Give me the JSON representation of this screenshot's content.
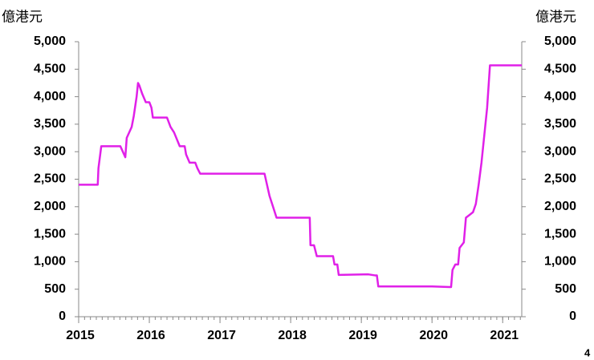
{
  "chart_data": {
    "type": "line",
    "y_label": "億港元",
    "y2_label": "億港元",
    "color": "#e020e8",
    "x": [
      2015.0,
      2015.27,
      2015.28,
      2015.32,
      2015.59,
      2015.66,
      2015.68,
      2015.75,
      2015.78,
      2015.82,
      2015.84,
      2015.86,
      2015.9,
      2015.95,
      2016.0,
      2016.03,
      2016.05,
      2016.25,
      2016.3,
      2016.35,
      2016.43,
      2016.5,
      2016.52,
      2016.57,
      2016.65,
      2016.68,
      2016.72,
      2017.63,
      2017.7,
      2017.75,
      2017.8,
      2018.27,
      2018.28,
      2018.33,
      2018.37,
      2018.6,
      2018.62,
      2018.66,
      2018.68,
      2019.1,
      2019.2,
      2019.22,
      2019.24,
      2020.0,
      2020.25,
      2020.27,
      2020.29,
      2020.33,
      2020.37,
      2020.39,
      2020.45,
      2020.48,
      2020.53,
      2020.58,
      2020.62,
      2020.66,
      2020.7,
      2020.74,
      2020.78,
      2020.82,
      2021.27
    ],
    "values": [
      2400,
      2400,
      2700,
      3100,
      3100,
      2900,
      3250,
      3450,
      3650,
      4000,
      4250,
      4200,
      4050,
      3900,
      3900,
      3800,
      3620,
      3620,
      3450,
      3350,
      3100,
      3100,
      2950,
      2800,
      2800,
      2700,
      2600,
      2600,
      2200,
      2000,
      1800,
      1800,
      1300,
      1300,
      1100,
      1100,
      950,
      950,
      760,
      770,
      750,
      750,
      550,
      550,
      540,
      540,
      850,
      950,
      950,
      1250,
      1350,
      1800,
      1850,
      1900,
      2050,
      2400,
      2800,
      3300,
      3800,
      4570,
      4570
    ],
    "xlim": [
      2015,
      2021.27
    ],
    "xticks": [
      2015,
      2016,
      2017,
      2018,
      2019,
      2020,
      2021
    ],
    "ylim": [
      0,
      5000
    ],
    "yticks": [
      0,
      500,
      {
        "value": 1000,
        "label": "1,000"
      },
      {
        "value": 1500,
        "label": "1,500"
      },
      {
        "value": 2000,
        "label": "2,000"
      },
      {
        "value": 2500,
        "label": "2,500"
      },
      {
        "value": 3000,
        "label": "3,000"
      },
      {
        "value": 3500,
        "label": "3,500"
      },
      {
        "value": 4000,
        "label": "4,000"
      },
      {
        "value": 4500,
        "label": "4,500"
      },
      {
        "value": 5000,
        "label": "5,000"
      }
    ],
    "y2lim": [
      0,
      5000
    ],
    "y2ticks": [
      0,
      500,
      {
        "value": 1000,
        "label": "1,000"
      },
      {
        "value": 1500,
        "label": "1,500"
      },
      {
        "value": 2000,
        "label": "2,000"
      },
      {
        "value": 2500,
        "label": "2,500"
      },
      {
        "value": 3000,
        "label": "3,000"
      },
      {
        "value": 3500,
        "label": "3,500"
      },
      {
        "value": 4000,
        "label": "4,000"
      },
      {
        "value": 4500,
        "label": "4,500"
      },
      {
        "value": 5000,
        "label": "5,000"
      }
    ],
    "grid": false
  },
  "page_number": "4"
}
